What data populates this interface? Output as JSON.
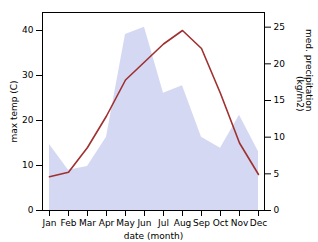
{
  "chart_data": {
    "type": "line",
    "categories": [
      "Jan",
      "Feb",
      "Mar",
      "Apr",
      "May",
      "Jun",
      "Jul",
      "Aug",
      "Sep",
      "Oct",
      "Nov",
      "Dec"
    ],
    "series": [
      {
        "type": "area",
        "axis": "y2",
        "color": "#b0b8e8",
        "values": [
          9.0,
          5.5,
          6.0,
          10.0,
          24.0,
          25.0,
          16.0,
          17.0,
          10.0,
          8.5,
          13.0,
          8.0
        ]
      },
      {
        "type": "line",
        "color": "#a03030",
        "values": [
          7.5,
          8.5,
          14.0,
          21.0,
          29.0,
          33.0,
          37.0,
          40.0,
          36.0,
          26.0,
          15.0,
          8.0
        ]
      }
    ],
    "xlabel": "date (month)",
    "ylabel": "max temp (C)",
    "y2label": "med. precipitation\n(kg/m2)",
    "ylim": [
      0,
      44
    ],
    "yticks": [
      0,
      10,
      20,
      30,
      40
    ],
    "y2lim": [
      0,
      27
    ],
    "y2ticks": [
      0,
      5,
      10,
      15,
      20,
      25
    ],
    "grid": false
  }
}
